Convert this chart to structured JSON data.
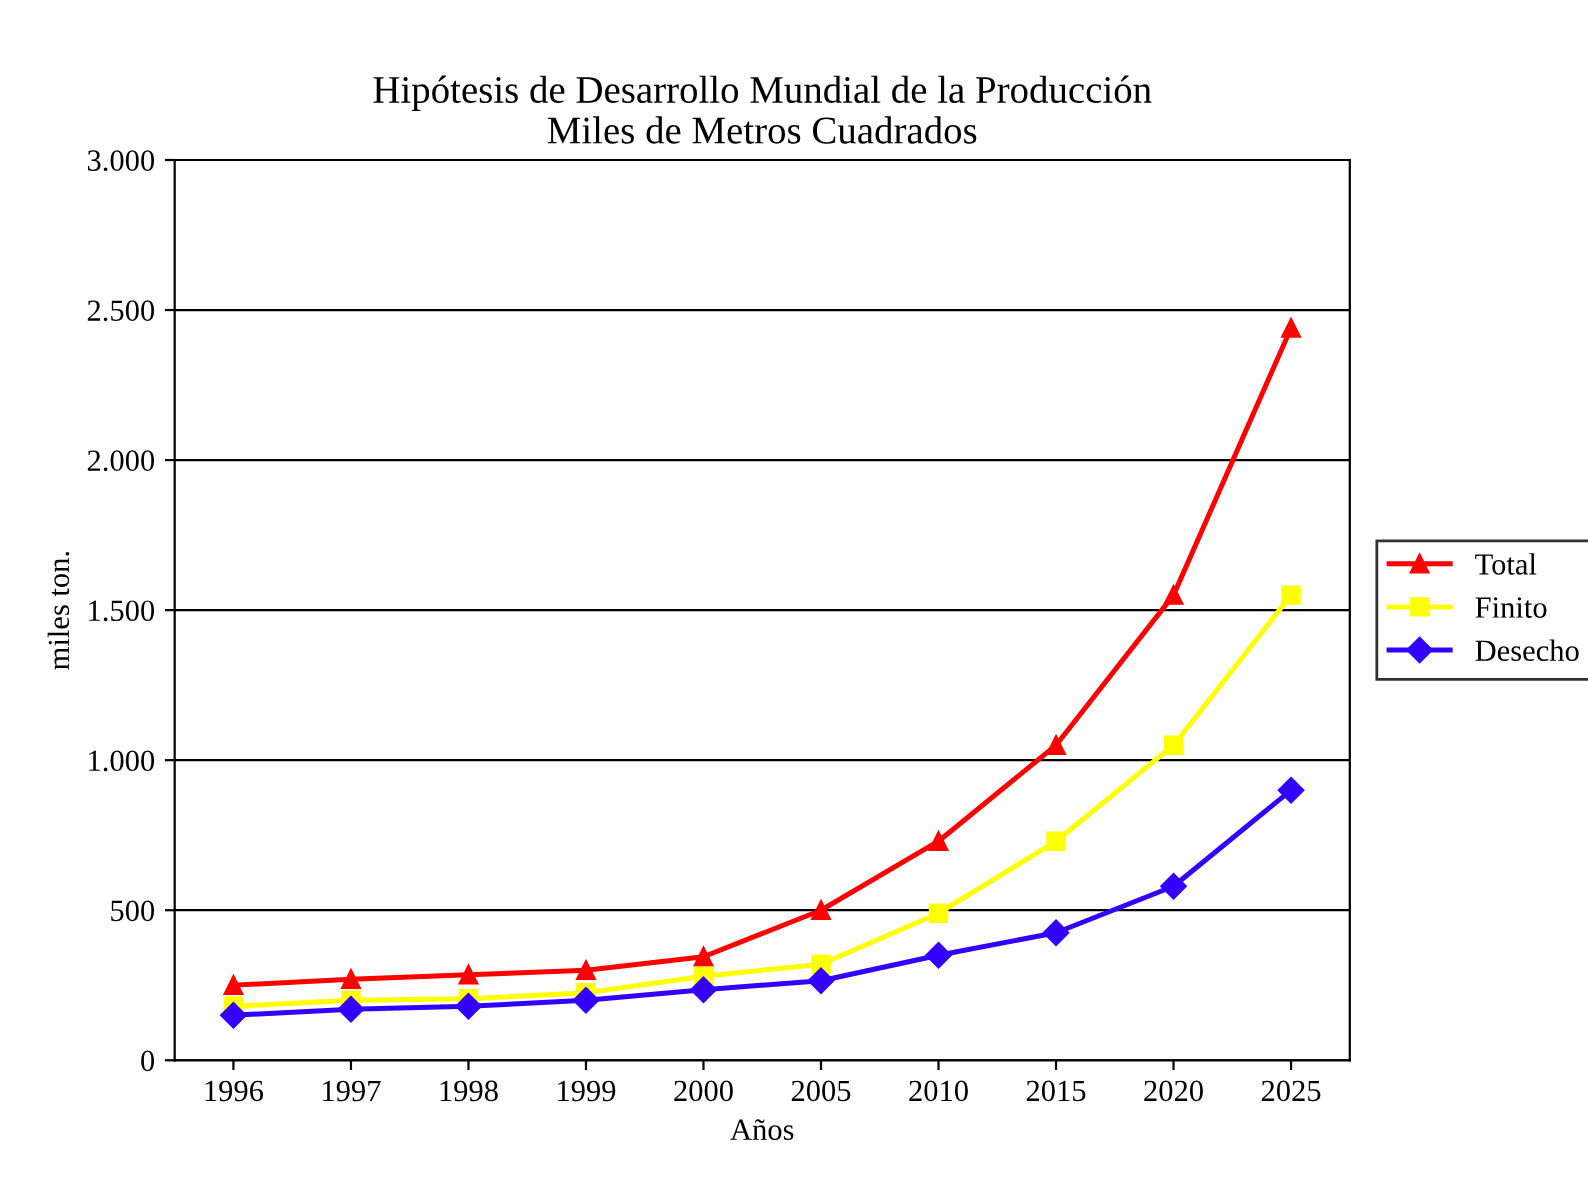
{
  "chart_data": {
    "type": "line",
    "title": "Hipótesis de Desarrollo Mundial de la Producción\nMiles de Metros Cuadrados",
    "xlabel": "Años",
    "ylabel": "miles ton.",
    "categories": [
      "1996",
      "1997",
      "1998",
      "1999",
      "2000",
      "2005",
      "2010",
      "2015",
      "2020",
      "2025"
    ],
    "series": [
      {
        "name": "Total",
        "color": "#ff0000",
        "marker": "triangle",
        "values": [
          250,
          270,
          285,
          300,
          345,
          500,
          730,
          1050,
          1550,
          2440
        ]
      },
      {
        "name": "Finito",
        "color": "#ffff00",
        "marker": "square",
        "values": [
          180,
          200,
          205,
          225,
          280,
          320,
          490,
          730,
          1050,
          1550
        ]
      },
      {
        "name": "Desecho",
        "color": "#3300ff",
        "marker": "diamond",
        "values": [
          150,
          170,
          180,
          200,
          235,
          265,
          350,
          425,
          580,
          900
        ]
      }
    ],
    "ylim": [
      0,
      3000
    ],
    "yticks": [
      0,
      500,
      {
        "value": 1000,
        "label": "1.000"
      },
      {
        "value": 1500,
        "label": "1.500"
      },
      {
        "value": 2000,
        "label": "2.000"
      },
      {
        "value": 2500,
        "label": "2.500"
      },
      {
        "value": 3000,
        "label": "3.000"
      }
    ],
    "grid": "y",
    "legend": "right",
    "line_style": "solid"
  }
}
